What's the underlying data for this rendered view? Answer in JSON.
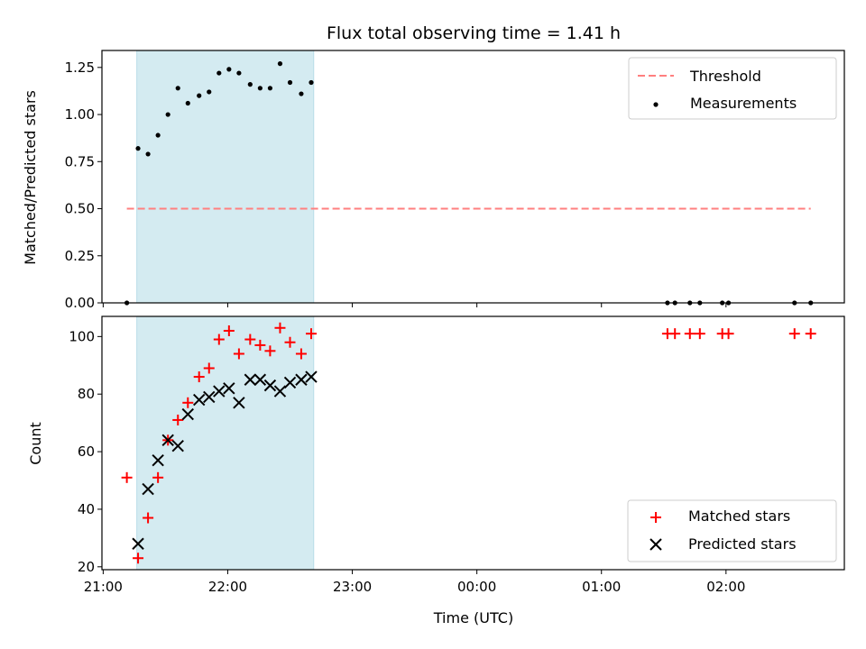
{
  "chart_data": {
    "type": "scatter",
    "title": "Flux total observing time = 1.41 h",
    "xlabel": "Time (UTC)",
    "x_tick_labels": [
      "21:00",
      "22:00",
      "23:00",
      "00:00",
      "01:00",
      "02:00"
    ],
    "x_ticks_hours": [
      21,
      22,
      23,
      24,
      25,
      26
    ],
    "xlim_hours": [
      20.99,
      26.95
    ],
    "shaded_interval_hours": [
      21.27,
      22.69
    ],
    "shade_color": "#d4ebf1",
    "top": {
      "ylabel": "Matched/Predicted stars",
      "ylim": [
        0,
        1.34
      ],
      "y_ticks": [
        0.0,
        0.25,
        0.5,
        0.75,
        1.0,
        1.25
      ],
      "y_tick_labels": [
        "0.00",
        "0.25",
        "0.50",
        "0.75",
        "1.00",
        "1.25"
      ],
      "legend_position": "top-right",
      "threshold": {
        "name": "Threshold",
        "value": 0.5,
        "x_range_hours": [
          21.19,
          26.68
        ],
        "color": "#ff7f7f"
      },
      "measurements": {
        "name": "Measurements",
        "color": "#000000",
        "points": [
          [
            21.19,
            0.0
          ],
          [
            21.28,
            0.82
          ],
          [
            21.36,
            0.79
          ],
          [
            21.44,
            0.89
          ],
          [
            21.52,
            1.0
          ],
          [
            21.6,
            1.14
          ],
          [
            21.68,
            1.06
          ],
          [
            21.77,
            1.1
          ],
          [
            21.85,
            1.12
          ],
          [
            21.93,
            1.22
          ],
          [
            22.01,
            1.24
          ],
          [
            22.09,
            1.22
          ],
          [
            22.18,
            1.16
          ],
          [
            22.26,
            1.14
          ],
          [
            22.34,
            1.14
          ],
          [
            22.42,
            1.27
          ],
          [
            22.5,
            1.17
          ],
          [
            22.59,
            1.11
          ],
          [
            22.67,
            1.17
          ],
          [
            25.53,
            0.0
          ],
          [
            25.59,
            0.0
          ],
          [
            25.71,
            0.0
          ],
          [
            25.79,
            0.0
          ],
          [
            25.97,
            0.0
          ],
          [
            26.02,
            0.0
          ],
          [
            26.55,
            0.0
          ],
          [
            26.68,
            0.0
          ]
        ]
      }
    },
    "bottom": {
      "ylabel": "Count",
      "ylim": [
        19,
        107
      ],
      "y_ticks": [
        20,
        40,
        60,
        80,
        100
      ],
      "y_tick_labels": [
        "20",
        "40",
        "60",
        "80",
        "100"
      ],
      "legend_position": "bottom-right",
      "series": [
        {
          "name": "Matched stars",
          "marker": "plus",
          "color": "#ff0000",
          "points": [
            [
              21.19,
              51
            ],
            [
              21.28,
              23
            ],
            [
              21.36,
              37
            ],
            [
              21.44,
              51
            ],
            [
              21.52,
              64
            ],
            [
              21.6,
              71
            ],
            [
              21.68,
              77
            ],
            [
              21.77,
              86
            ],
            [
              21.85,
              89
            ],
            [
              21.93,
              99
            ],
            [
              22.01,
              102
            ],
            [
              22.09,
              94
            ],
            [
              22.18,
              99
            ],
            [
              22.26,
              97
            ],
            [
              22.34,
              95
            ],
            [
              22.42,
              103
            ],
            [
              22.5,
              98
            ],
            [
              22.59,
              94
            ],
            [
              22.67,
              101
            ],
            [
              25.53,
              101
            ],
            [
              25.59,
              101
            ],
            [
              25.71,
              101
            ],
            [
              25.79,
              101
            ],
            [
              25.97,
              101
            ],
            [
              26.02,
              101
            ],
            [
              26.55,
              101
            ],
            [
              26.68,
              101
            ]
          ]
        },
        {
          "name": "Predicted stars",
          "marker": "x",
          "color": "#000000",
          "points": [
            [
              21.28,
              28
            ],
            [
              21.36,
              47
            ],
            [
              21.44,
              57
            ],
            [
              21.52,
              64
            ],
            [
              21.6,
              62
            ],
            [
              21.68,
              73
            ],
            [
              21.77,
              78
            ],
            [
              21.85,
              79
            ],
            [
              21.93,
              81
            ],
            [
              22.01,
              82
            ],
            [
              22.09,
              77
            ],
            [
              22.18,
              85
            ],
            [
              22.26,
              85
            ],
            [
              22.34,
              83
            ],
            [
              22.42,
              81
            ],
            [
              22.5,
              84
            ],
            [
              22.59,
              85
            ],
            [
              22.67,
              86
            ]
          ]
        }
      ]
    }
  }
}
